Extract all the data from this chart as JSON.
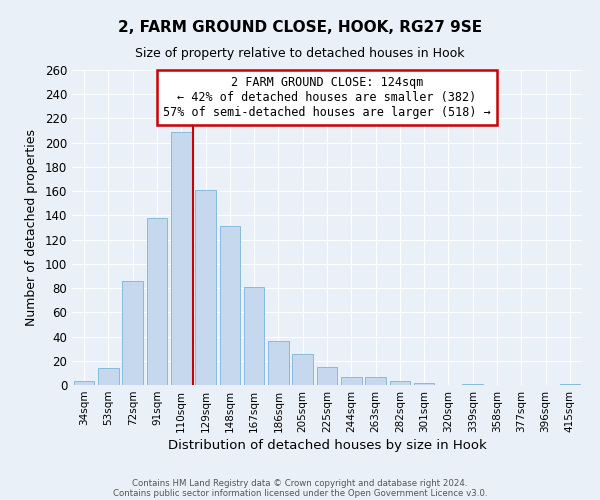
{
  "title": "2, FARM GROUND CLOSE, HOOK, RG27 9SE",
  "subtitle": "Size of property relative to detached houses in Hook",
  "xlabel": "Distribution of detached houses by size in Hook",
  "ylabel": "Number of detached properties",
  "bar_color": "#c5d8ed",
  "bar_edge_color": "#7ab4d8",
  "background_color": "#eaf0f8",
  "grid_color": "#ffffff",
  "categories": [
    "34sqm",
    "53sqm",
    "72sqm",
    "91sqm",
    "110sqm",
    "129sqm",
    "148sqm",
    "167sqm",
    "186sqm",
    "205sqm",
    "225sqm",
    "244sqm",
    "263sqm",
    "282sqm",
    "301sqm",
    "320sqm",
    "339sqm",
    "358sqm",
    "377sqm",
    "396sqm",
    "415sqm"
  ],
  "values": [
    3,
    14,
    86,
    138,
    209,
    161,
    131,
    81,
    36,
    26,
    15,
    7,
    7,
    3,
    2,
    0,
    1,
    0,
    0,
    0,
    1
  ],
  "ylim": [
    0,
    260
  ],
  "yticks": [
    0,
    20,
    40,
    60,
    80,
    100,
    120,
    140,
    160,
    180,
    200,
    220,
    240,
    260
  ],
  "red_line_index": 5,
  "annotation_title": "2 FARM GROUND CLOSE: 124sqm",
  "annotation_line1": "← 42% of detached houses are smaller (382)",
  "annotation_line2": "57% of semi-detached houses are larger (518) →",
  "annotation_box_color": "#ffffff",
  "annotation_border_color": "#cc0000",
  "red_line_color": "#cc0000",
  "footer1": "Contains HM Land Registry data © Crown copyright and database right 2024.",
  "footer2": "Contains public sector information licensed under the Open Government Licence v3.0."
}
